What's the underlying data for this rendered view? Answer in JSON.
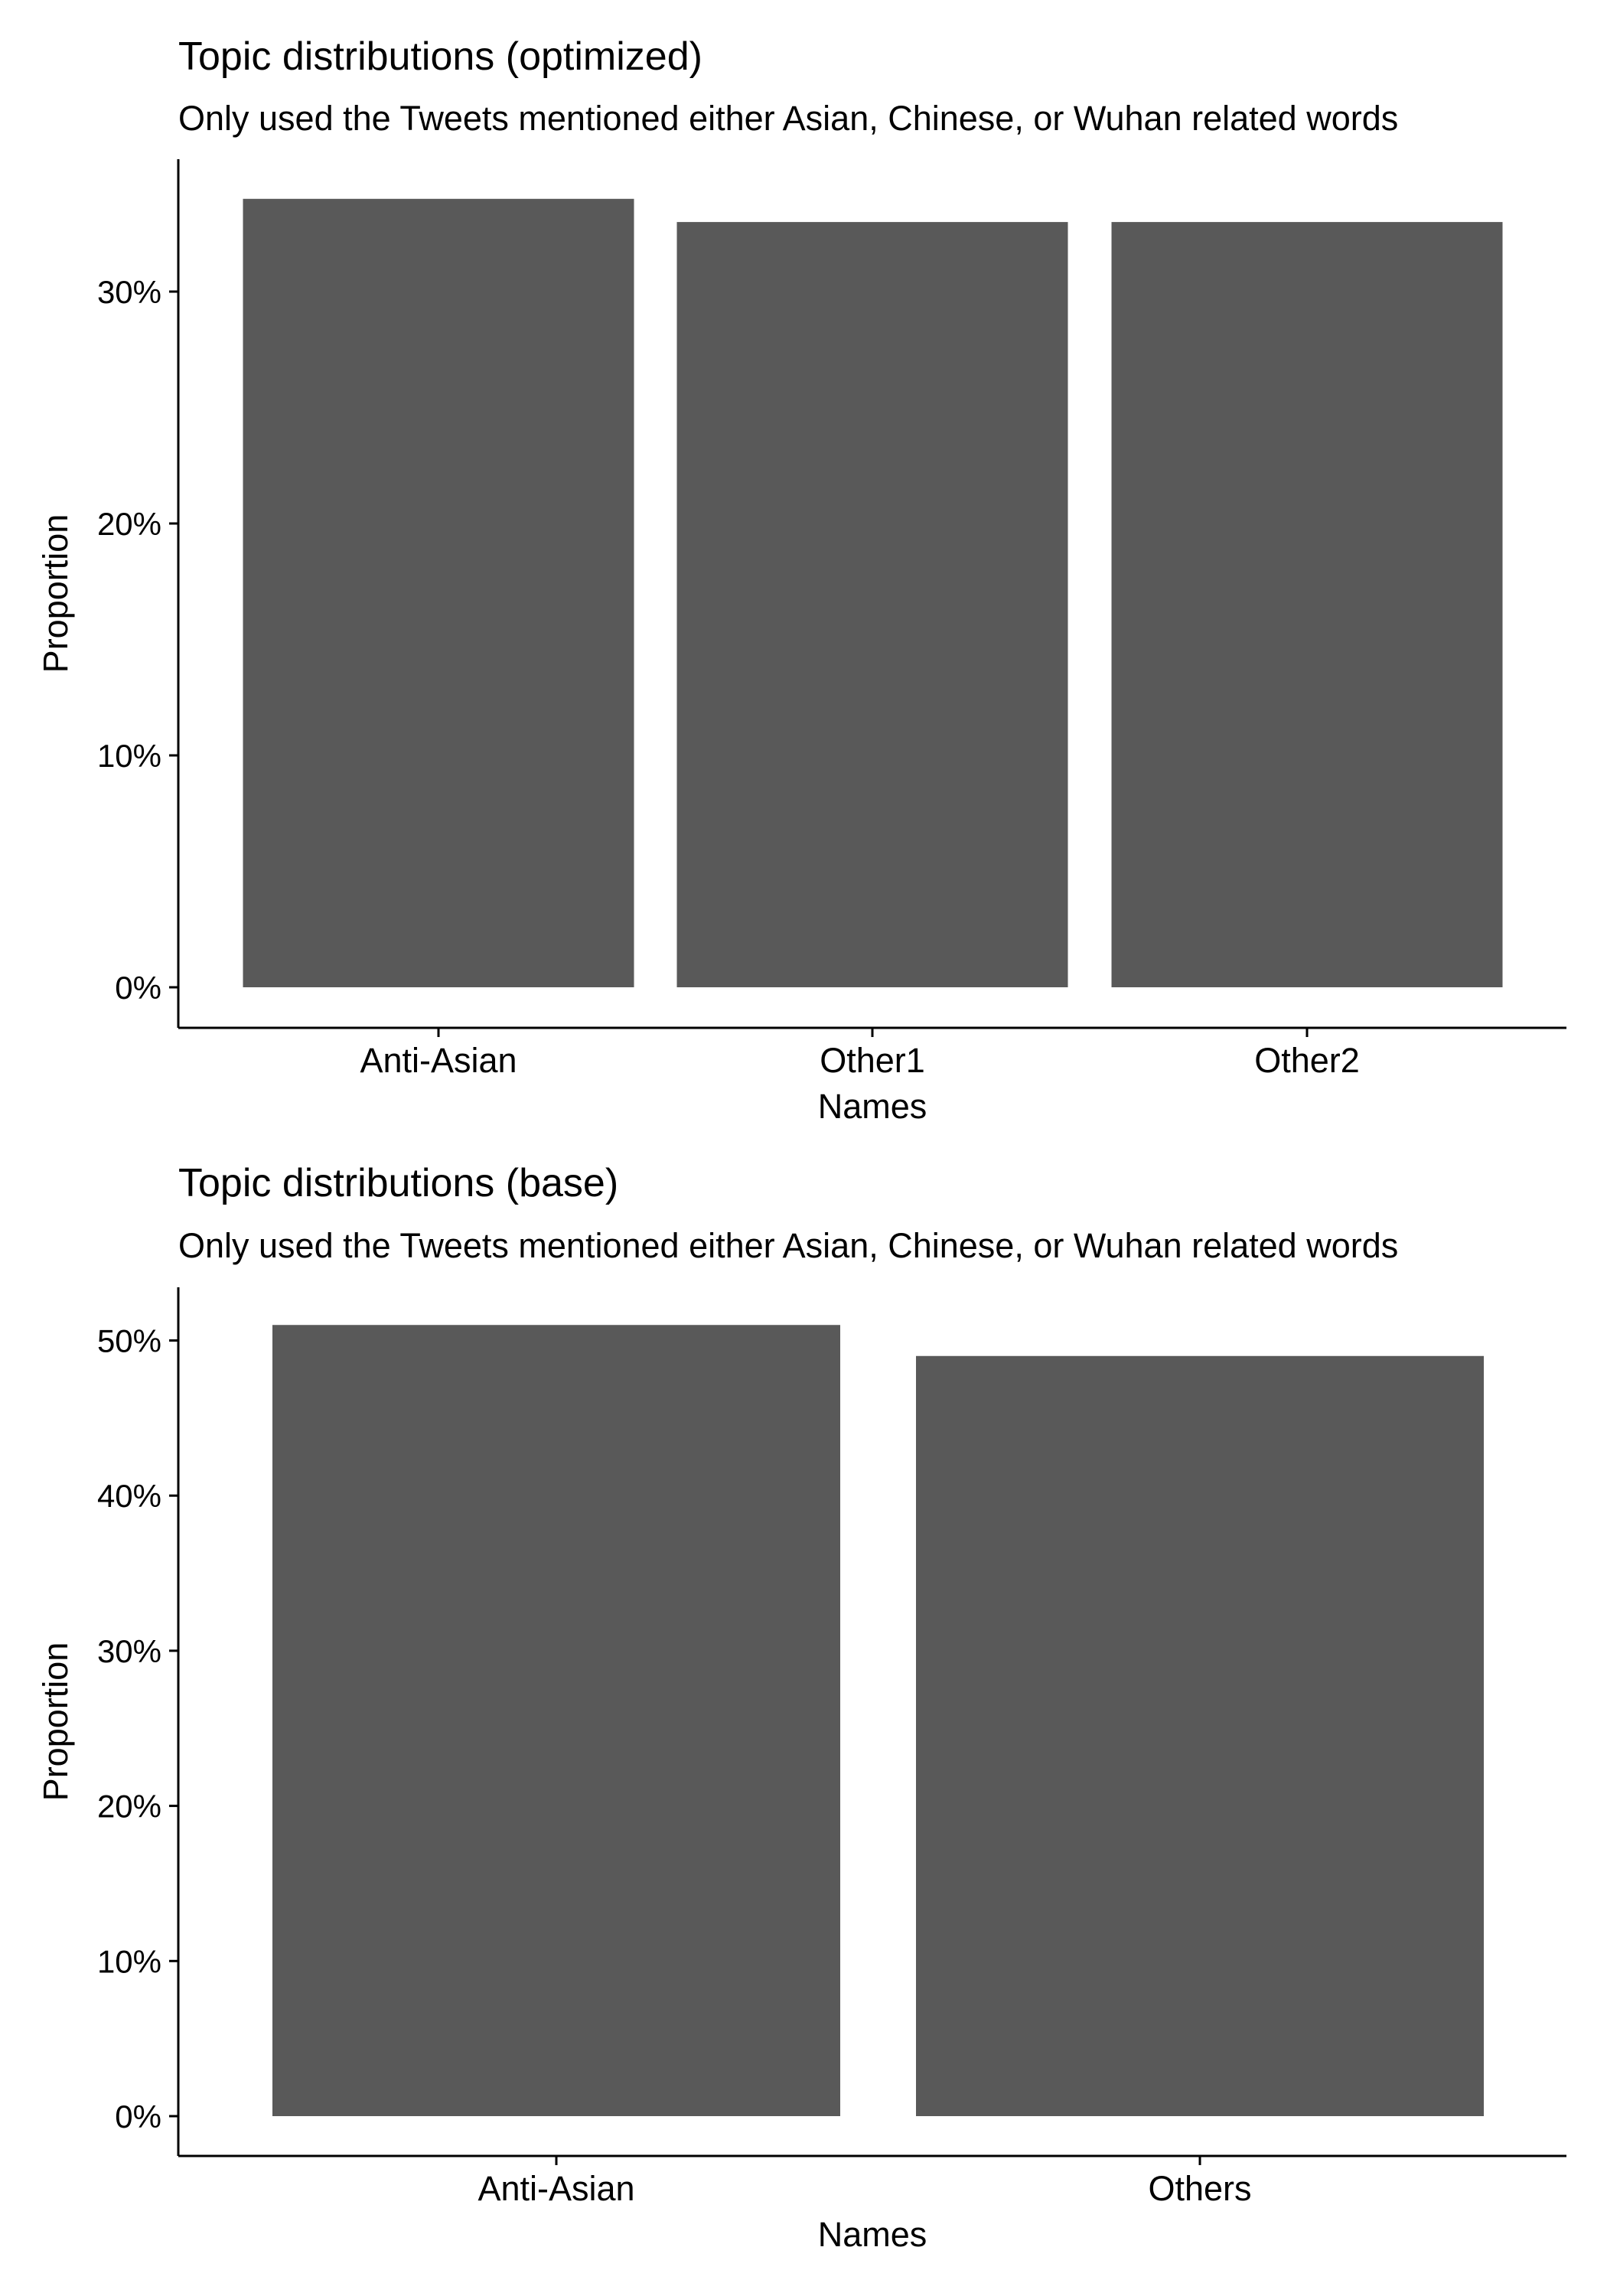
{
  "chart_data": [
    {
      "type": "bar",
      "title": "Topic distributions (optimized)",
      "subtitle": "Only used the Tweets mentioned either Asian, Chinese, or Wuhan related words",
      "xlabel": "Names",
      "ylabel": "Proportion",
      "categories": [
        "Anti-Asian",
        "Other1",
        "Other2"
      ],
      "values": [
        0.34,
        0.33,
        0.33
      ],
      "ylim": [
        0,
        0.35
      ],
      "yticks": [
        0,
        0.1,
        0.2,
        0.3
      ],
      "ytick_labels": [
        "0%",
        "10%",
        "20%",
        "30%"
      ],
      "bar_color": "#595959",
      "grid": false,
      "legend": "none"
    },
    {
      "type": "bar",
      "title": "Topic distributions (base)",
      "subtitle": "Only used the Tweets mentioned either Asian, Chinese, or Wuhan related words",
      "xlabel": "Names",
      "ylabel": "Proportion",
      "categories": [
        "Anti-Asian",
        "Others"
      ],
      "values": [
        0.51,
        0.49
      ],
      "ylim": [
        0,
        0.53
      ],
      "yticks": [
        0,
        0.1,
        0.2,
        0.3,
        0.4,
        0.5
      ],
      "ytick_labels": [
        "0%",
        "10%",
        "20%",
        "30%",
        "40%",
        "50%"
      ],
      "bar_color": "#595959",
      "grid": false,
      "legend": "none"
    }
  ]
}
